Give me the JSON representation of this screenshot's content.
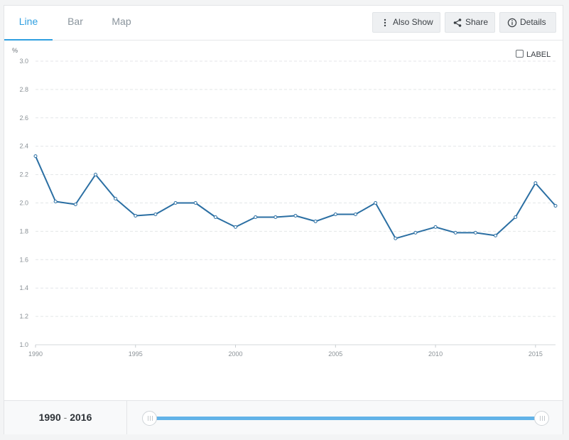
{
  "tabs": [
    {
      "label": "Line",
      "active": true
    },
    {
      "label": "Bar",
      "active": false
    },
    {
      "label": "Map",
      "active": false
    }
  ],
  "toolbar": {
    "also_show_label": "Also Show",
    "share_label": "Share",
    "details_label": "Details"
  },
  "label_toggle": {
    "label": "LABEL",
    "checked": false
  },
  "range": {
    "start": "1990",
    "separator": "-",
    "end": "2016"
  },
  "colors": {
    "accent": "#2f9fe0",
    "line": "#2b6fa3",
    "slider": "#62b3e8"
  },
  "chart_data": {
    "type": "line",
    "ylabel": "%",
    "xlabel": "",
    "ylim": [
      1.0,
      3.0
    ],
    "xlim": [
      1990,
      2016
    ],
    "yticks": [
      1.0,
      1.2,
      1.4,
      1.6,
      1.8,
      2.0,
      2.2,
      2.4,
      2.6,
      2.8,
      3.0
    ],
    "xticks": [
      1990,
      1995,
      2000,
      2005,
      2010,
      2015
    ],
    "grid": true,
    "series": [
      {
        "x": [
          1990,
          1991,
          1992,
          1993,
          1994,
          1995,
          1996,
          1997,
          1998,
          1999,
          2000,
          2001,
          2002,
          2003,
          2004,
          2005,
          2006,
          2007,
          2008,
          2009,
          2010,
          2011,
          2012,
          2013,
          2014,
          2015,
          2016
        ],
        "values": [
          2.33,
          2.01,
          1.99,
          2.2,
          2.03,
          1.91,
          1.92,
          2.0,
          2.0,
          1.9,
          1.83,
          1.9,
          1.9,
          1.91,
          1.87,
          1.92,
          1.92,
          2.0,
          1.75,
          1.79,
          1.83,
          1.79,
          1.79,
          1.77,
          1.9,
          2.14,
          1.98
        ]
      }
    ]
  }
}
